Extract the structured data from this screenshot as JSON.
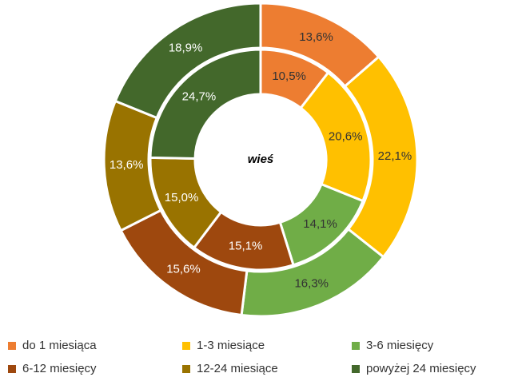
{
  "chart_data": {
    "type": "doughnut",
    "center_label": "wieś",
    "categories": [
      "do 1 miesiąca",
      "1-3 miesiące",
      "3-6 miesięcy",
      "6-12 miesięcy",
      "12-24 miesiące",
      "powyżej 24 miesięcy"
    ],
    "colors": [
      "#ED7D31",
      "#FFC000",
      "#70AD47",
      "#9E480E",
      "#997300",
      "#43682B"
    ],
    "series": [
      {
        "values": [
          13.6,
          22.1,
          16.3,
          15.6,
          13.6,
          18.9
        ],
        "value_labels": [
          "13,6%",
          "22,1%",
          "16,3%",
          "15,6%",
          "13,6%",
          "18,9%"
        ]
      },
      {
        "values": [
          10.5,
          20.6,
          14.1,
          15.1,
          15.0,
          24.7
        ],
        "value_labels": [
          "10,5%",
          "20,6%",
          "14,1%",
          "15,1%",
          "15,0%",
          "24,7%"
        ]
      }
    ],
    "legend": "bottom"
  }
}
